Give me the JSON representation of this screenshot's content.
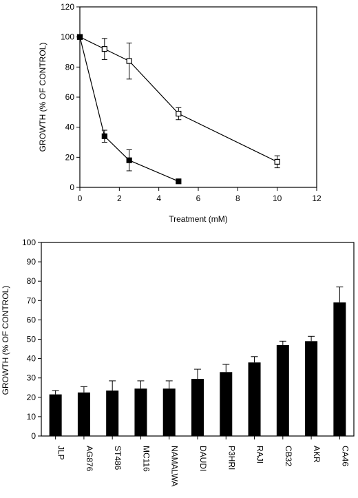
{
  "chart_data": [
    {
      "type": "line",
      "xlabel": "Treatment (mM)",
      "ylabel": "GROWTH (% OF CONTROL)",
      "xlim": [
        0,
        12
      ],
      "ylim": [
        0,
        120
      ],
      "xticks": [
        "0",
        "2",
        "4",
        "6",
        "8",
        "10",
        "12"
      ],
      "yticks": [
        "0",
        "20",
        "40",
        "60",
        "80",
        "100",
        "120"
      ],
      "series": [
        {
          "marker": "open-square",
          "x": [
            0,
            1.25,
            2.5,
            5,
            10
          ],
          "y": [
            100,
            92,
            84,
            49,
            17
          ],
          "err": [
            0,
            7,
            12,
            4,
            4
          ]
        },
        {
          "marker": "filled-square",
          "x": [
            0,
            1.25,
            2.5,
            5
          ],
          "y": [
            100,
            34,
            18,
            4
          ],
          "err": [
            0,
            4,
            7,
            0
          ]
        }
      ]
    },
    {
      "type": "bar",
      "ylabel": "GROWTH (% OF CONTROL)",
      "ylim": [
        0,
        100
      ],
      "yticks": [
        "0",
        "10",
        "20",
        "30",
        "40",
        "50",
        "60",
        "70",
        "80",
        "90",
        "100"
      ],
      "categories": [
        "JLP",
        "AG876",
        "ST486",
        "MC116",
        "NAMALWA",
        "DAUDI",
        "P3HRI",
        "RAJI",
        "CB32",
        "AKR",
        "CA46"
      ],
      "values": [
        21.5,
        22.5,
        23.5,
        24.5,
        24.5,
        29.5,
        33,
        38,
        47,
        49,
        69
      ],
      "err": [
        2,
        3,
        5,
        4,
        4,
        5,
        4,
        3,
        2,
        2.5,
        8
      ]
    }
  ]
}
